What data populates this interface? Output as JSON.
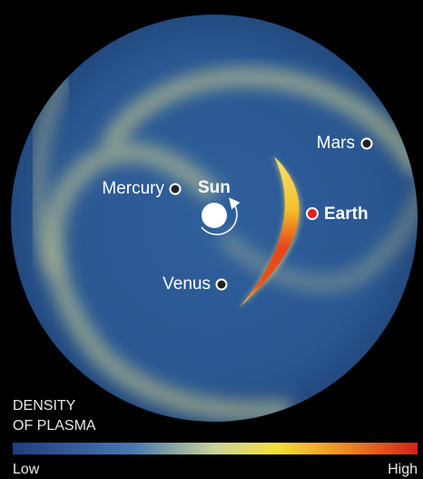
{
  "sun": {
    "label": "Sun"
  },
  "planets": [
    {
      "label": "Mercury"
    },
    {
      "label": "Venus"
    },
    {
      "label": "Earth"
    },
    {
      "label": "Mars"
    }
  ],
  "legend": {
    "title": [
      "DENSITY",
      "OF PLASMA"
    ],
    "low": "Low",
    "high": "High"
  }
}
